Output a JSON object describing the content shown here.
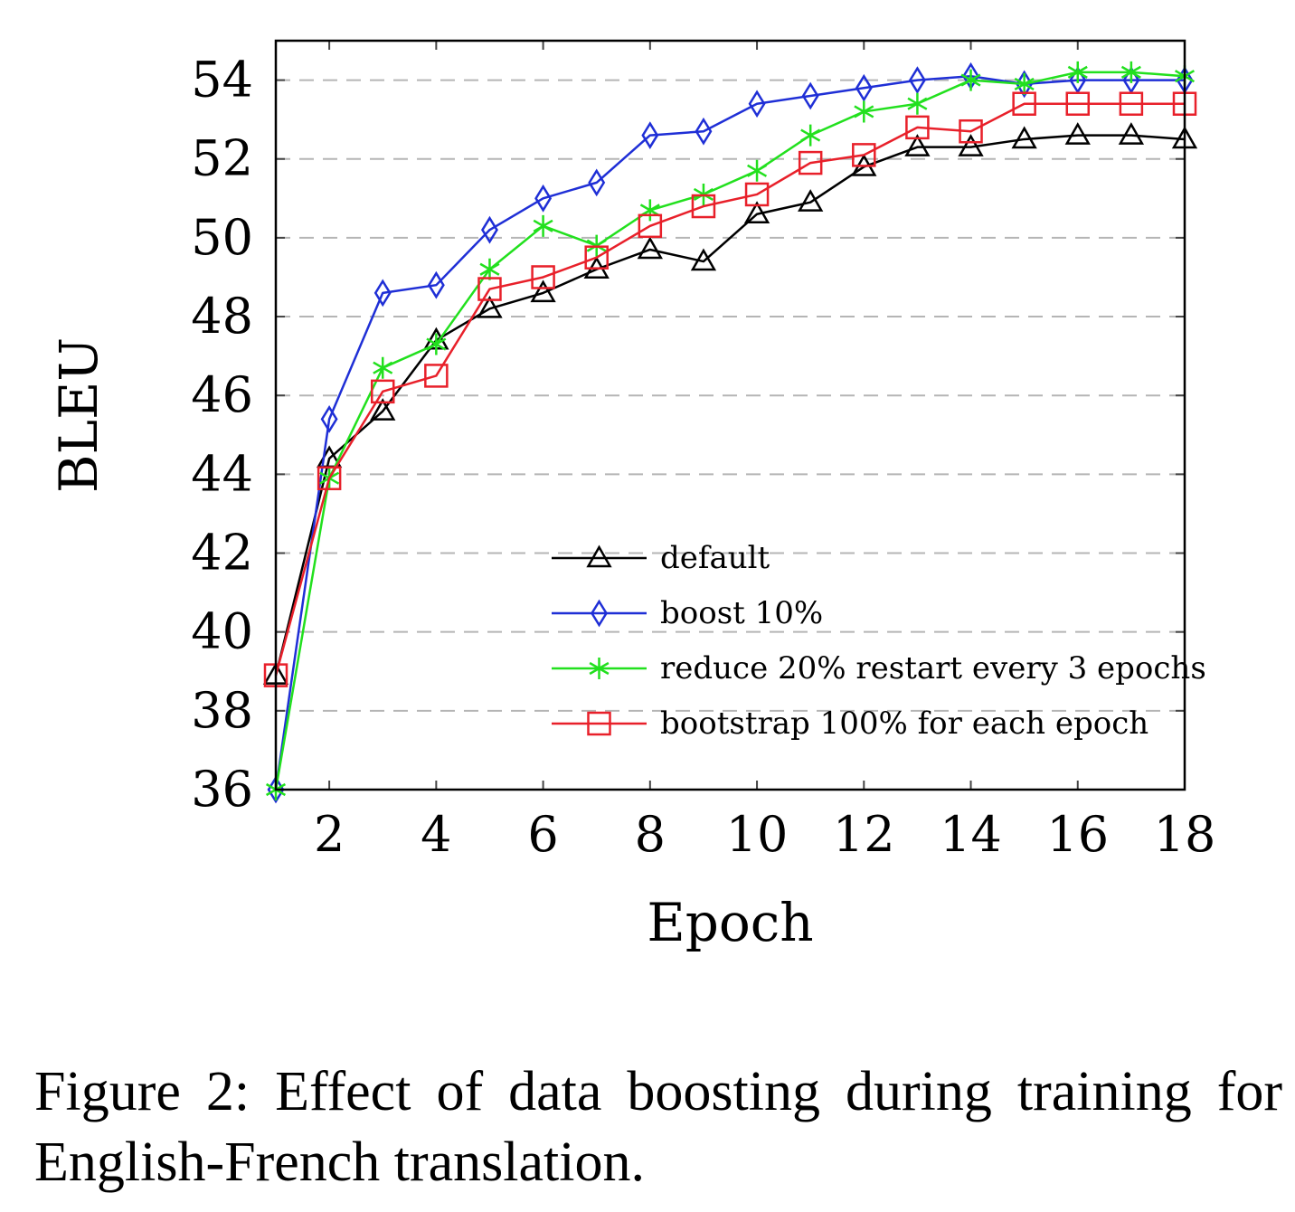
{
  "chart_data": {
    "type": "line",
    "xlabel": "Epoch",
    "ylabel": "BLEU",
    "xlim": [
      1,
      18
    ],
    "ylim": [
      36,
      55
    ],
    "x_ticks": [
      2,
      4,
      6,
      8,
      10,
      12,
      14,
      16,
      18
    ],
    "y_ticks": [
      36,
      38,
      40,
      42,
      44,
      46,
      48,
      50,
      52,
      54
    ],
    "grid": "horizontal dashed",
    "legend_position": "bottom-right",
    "x": [
      1,
      2,
      3,
      4,
      5,
      6,
      7,
      8,
      9,
      10,
      11,
      12,
      13,
      14,
      15,
      16,
      17,
      18
    ],
    "series": [
      {
        "name": "default",
        "color": "#000000",
        "marker": "triangle",
        "values": [
          38.9,
          44.4,
          45.6,
          47.4,
          48.2,
          48.6,
          49.2,
          49.7,
          49.4,
          50.6,
          50.9,
          51.8,
          52.3,
          52.3,
          52.5,
          52.6,
          52.6,
          52.5
        ]
      },
      {
        "name": "boost 10%",
        "color": "#1f2fd6",
        "marker": "diamond",
        "values": [
          36.0,
          45.4,
          48.6,
          48.8,
          50.2,
          51.0,
          51.4,
          52.6,
          52.7,
          53.4,
          53.6,
          53.8,
          54.0,
          54.1,
          53.9,
          54.0,
          54.0,
          54.0
        ]
      },
      {
        "name": "reduce 20% restart every 3 epochs",
        "color": "#22e01e",
        "marker": "star",
        "values": [
          36.0,
          43.9,
          46.7,
          47.3,
          49.2,
          50.3,
          49.8,
          50.7,
          51.1,
          51.7,
          52.6,
          53.2,
          53.4,
          54.0,
          53.9,
          54.2,
          54.2,
          54.1
        ]
      },
      {
        "name": "bootstrap 100% for each epoch",
        "color": "#e8202a",
        "marker": "square",
        "values": [
          38.9,
          43.9,
          46.1,
          46.5,
          48.7,
          49.0,
          49.5,
          50.3,
          50.8,
          51.1,
          51.9,
          52.1,
          52.8,
          52.7,
          53.4,
          53.4,
          53.4,
          53.4
        ]
      }
    ]
  },
  "caption": "Figure 2: Effect of data boosting during training for English-French translation."
}
